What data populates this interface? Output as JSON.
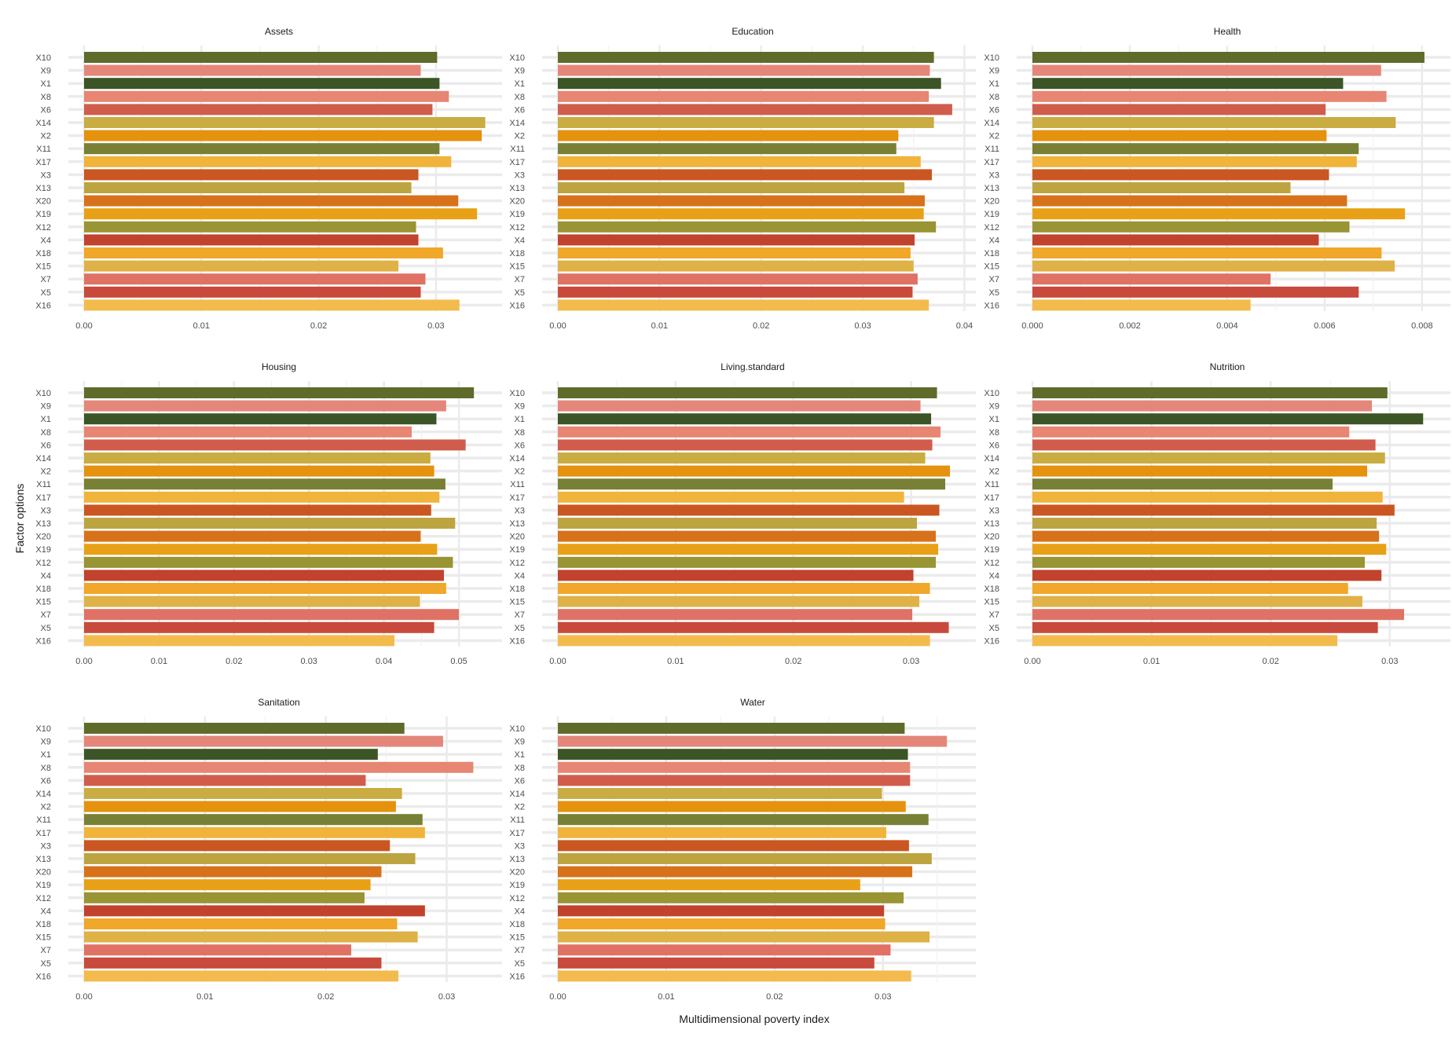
{
  "figure": {
    "xlabel": "Multidimensional poverty index",
    "ylabel": "Factor options"
  },
  "colors": {
    "X10": "#5e6b2b",
    "X9": "#e4877a",
    "X1": "#3c5526",
    "X8": "#e68673",
    "X6": "#d05d4c",
    "X14": "#c9ac42",
    "X2": "#e5920e",
    "X11": "#788035",
    "X17": "#f0b43b",
    "X3": "#ca5622",
    "X13": "#bca541",
    "X20": "#d7721a",
    "X19": "#e8a117",
    "X12": "#999434",
    "X4": "#c1422d",
    "X18": "#f0a72a",
    "X15": "#dfb247",
    "X7": "#df7265",
    "X5": "#c74a3c",
    "X16": "#f3bb4d"
  },
  "chart_data": [
    {
      "type": "bar",
      "orientation": "horizontal",
      "title": "Assets",
      "categories": [
        "X10",
        "X9",
        "X1",
        "X8",
        "X6",
        "X14",
        "X2",
        "X11",
        "X17",
        "X3",
        "X13",
        "X20",
        "X19",
        "X12",
        "X4",
        "X18",
        "X15",
        "X7",
        "X5",
        "X16"
      ],
      "values": [
        0.0301,
        0.0287,
        0.0303,
        0.0311,
        0.0297,
        0.0342,
        0.0339,
        0.0303,
        0.0313,
        0.0285,
        0.0279,
        0.0319,
        0.0335,
        0.0283,
        0.0285,
        0.0306,
        0.0268,
        0.0291,
        0.0287,
        0.032
      ],
      "xlim": [
        0,
        0.03483
      ],
      "xticks": [
        0,
        0.01,
        0.02,
        0.03
      ],
      "xtick_labels": [
        "0.00",
        "0.01",
        "0.02",
        "0.03"
      ],
      "xlabel": "",
      "ylabel": ""
    },
    {
      "type": "bar",
      "orientation": "horizontal",
      "title": "Education",
      "categories": [
        "X10",
        "X9",
        "X1",
        "X8",
        "X6",
        "X14",
        "X2",
        "X11",
        "X17",
        "X3",
        "X13",
        "X20",
        "X19",
        "X12",
        "X4",
        "X18",
        "X15",
        "X7",
        "X5",
        "X16"
      ],
      "values": [
        0.037,
        0.0366,
        0.0377,
        0.0365,
        0.0388,
        0.037,
        0.0335,
        0.0333,
        0.0357,
        0.0368,
        0.0341,
        0.0361,
        0.036,
        0.0372,
        0.0351,
        0.0347,
        0.035,
        0.0354,
        0.0349,
        0.0365
      ],
      "xlim": [
        0,
        0.0402
      ],
      "xticks": [
        0,
        0.01,
        0.02,
        0.03,
        0.04
      ],
      "xtick_labels": [
        "0.00",
        "0.01",
        "0.02",
        "0.03",
        "0.04"
      ],
      "xlabel": "",
      "ylabel": ""
    },
    {
      "type": "bar",
      "orientation": "horizontal",
      "title": "Health",
      "categories": [
        "X10",
        "X9",
        "X1",
        "X8",
        "X6",
        "X14",
        "X2",
        "X11",
        "X17",
        "X3",
        "X13",
        "X20",
        "X19",
        "X12",
        "X4",
        "X18",
        "X15",
        "X7",
        "X5",
        "X16"
      ],
      "values": [
        0.00805,
        0.00716,
        0.00638,
        0.00727,
        0.00602,
        0.00746,
        0.00604,
        0.0067,
        0.00666,
        0.00609,
        0.0053,
        0.00646,
        0.00765,
        0.00651,
        0.00588,
        0.00717,
        0.00744,
        0.00489,
        0.0067,
        0.00448
      ],
      "xlim": [
        0,
        0.00839
      ],
      "xticks": [
        0,
        0.002,
        0.004,
        0.006,
        0.008
      ],
      "xtick_labels": [
        "0.000",
        "0.002",
        "0.004",
        "0.006",
        "0.008"
      ],
      "xlabel": "",
      "ylabel": ""
    },
    {
      "type": "bar",
      "orientation": "horizontal",
      "title": "Housing",
      "categories": [
        "X10",
        "X9",
        "X1",
        "X8",
        "X6",
        "X14",
        "X2",
        "X11",
        "X17",
        "X3",
        "X13",
        "X20",
        "X19",
        "X12",
        "X4",
        "X18",
        "X15",
        "X7",
        "X5",
        "X16"
      ],
      "values": [
        0.052,
        0.0483,
        0.047,
        0.0437,
        0.0509,
        0.0462,
        0.0467,
        0.0482,
        0.0474,
        0.0463,
        0.0495,
        0.0449,
        0.0471,
        0.0492,
        0.048,
        0.0483,
        0.0448,
        0.05,
        0.0467,
        0.0414
      ],
      "xlim": [
        0,
        0.0545
      ],
      "xticks": [
        0,
        0.01,
        0.02,
        0.03,
        0.04,
        0.05
      ],
      "xtick_labels": [
        "0.00",
        "0.01",
        "0.02",
        "0.03",
        "0.04",
        "0.05"
      ],
      "xlabel": "",
      "ylabel": ""
    },
    {
      "type": "bar",
      "orientation": "horizontal",
      "title": "Living.standard",
      "categories": [
        "X10",
        "X9",
        "X1",
        "X8",
        "X6",
        "X14",
        "X2",
        "X11",
        "X17",
        "X3",
        "X13",
        "X20",
        "X19",
        "X12",
        "X4",
        "X18",
        "X15",
        "X7",
        "X5",
        "X16"
      ],
      "values": [
        0.0322,
        0.0308,
        0.0317,
        0.0325,
        0.0318,
        0.0312,
        0.0333,
        0.0329,
        0.0294,
        0.0324,
        0.0305,
        0.0321,
        0.0323,
        0.0321,
        0.0302,
        0.0316,
        0.0307,
        0.0301,
        0.0332,
        0.0316
      ],
      "xlim": [
        0,
        0.0347
      ],
      "xticks": [
        0,
        0.01,
        0.02,
        0.03
      ],
      "xtick_labels": [
        "0.00",
        "0.01",
        "0.02",
        "0.03"
      ],
      "xlabel": "",
      "ylabel": ""
    },
    {
      "type": "bar",
      "orientation": "horizontal",
      "title": "Nutrition",
      "categories": [
        "X10",
        "X9",
        "X1",
        "X8",
        "X6",
        "X14",
        "X2",
        "X11",
        "X17",
        "X3",
        "X13",
        "X20",
        "X19",
        "X12",
        "X4",
        "X18",
        "X15",
        "X7",
        "X5",
        "X16"
      ],
      "values": [
        0.0298,
        0.0285,
        0.0328,
        0.0266,
        0.0288,
        0.0296,
        0.0281,
        0.0252,
        0.0294,
        0.0304,
        0.0289,
        0.0291,
        0.0297,
        0.0279,
        0.0293,
        0.0265,
        0.0277,
        0.0312,
        0.029,
        0.0256
      ],
      "xlim": [
        0,
        0.0343
      ],
      "xticks": [
        0,
        0.01,
        0.02,
        0.03
      ],
      "xtick_labels": [
        "0.00",
        "0.01",
        "0.02",
        "0.03"
      ],
      "xlabel": "",
      "ylabel": ""
    },
    {
      "type": "bar",
      "orientation": "horizontal",
      "title": "Sanitation",
      "categories": [
        "X10",
        "X9",
        "X1",
        "X8",
        "X6",
        "X14",
        "X2",
        "X11",
        "X17",
        "X3",
        "X13",
        "X20",
        "X19",
        "X12",
        "X4",
        "X18",
        "X15",
        "X7",
        "X5",
        "X16"
      ],
      "values": [
        0.0265,
        0.0297,
        0.0243,
        0.0322,
        0.0233,
        0.0263,
        0.0258,
        0.028,
        0.0282,
        0.0253,
        0.0274,
        0.0246,
        0.0237,
        0.0232,
        0.0282,
        0.0259,
        0.0276,
        0.0221,
        0.0246,
        0.026
      ],
      "xlim": [
        0,
        0.0338
      ],
      "xticks": [
        0,
        0.01,
        0.02,
        0.03
      ],
      "xtick_labels": [
        "0.00",
        "0.01",
        "0.02",
        "0.03"
      ],
      "xlabel": "",
      "ylabel": ""
    },
    {
      "type": "bar",
      "orientation": "horizontal",
      "title": "Water",
      "categories": [
        "X10",
        "X9",
        "X1",
        "X8",
        "X6",
        "X14",
        "X2",
        "X11",
        "X17",
        "X3",
        "X13",
        "X20",
        "X19",
        "X12",
        "X4",
        "X18",
        "X15",
        "X7",
        "X5",
        "X16"
      ],
      "values": [
        0.032,
        0.0359,
        0.0323,
        0.0325,
        0.0325,
        0.0299,
        0.0321,
        0.0342,
        0.0303,
        0.0324,
        0.0345,
        0.0327,
        0.0279,
        0.0319,
        0.0301,
        0.0302,
        0.0343,
        0.0307,
        0.0292,
        0.0326
      ],
      "xlim": [
        0,
        0.0377
      ],
      "xticks": [
        0,
        0.01,
        0.02,
        0.03
      ],
      "xtick_labels": [
        "0.00",
        "0.01",
        "0.02",
        "0.03"
      ],
      "xlabel": "",
      "ylabel": ""
    }
  ]
}
